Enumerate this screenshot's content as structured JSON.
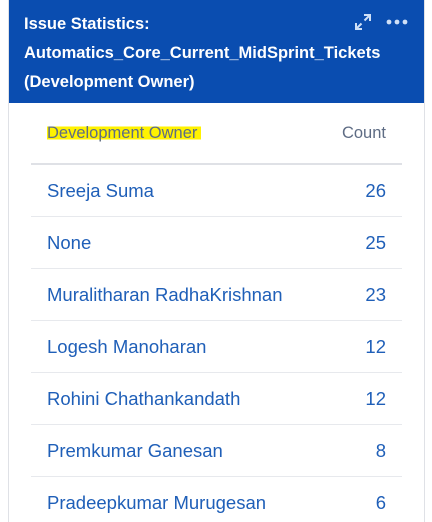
{
  "gadget": {
    "title_line1": "Issue Statistics:",
    "title_line2": "Automatics_Core_Current_MidSprint_Tickets",
    "title_line3": "(Development Owner)",
    "icons": [
      "expand-icon",
      "more-options-icon"
    ],
    "header_color": "#0a4db0",
    "link_color": "#1f5fb8",
    "highlight_color": "#fff200"
  },
  "table": {
    "columns": [
      "Development Owner",
      "Count"
    ],
    "rows": [
      {
        "owner": "Sreeja Suma",
        "count": "26"
      },
      {
        "owner": "None",
        "count": "25"
      },
      {
        "owner": "Muralitharan RadhaKrishnan",
        "count": "23"
      },
      {
        "owner": "Logesh Manoharan",
        "count": "12"
      },
      {
        "owner": "Rohini Chathankandath",
        "count": "12"
      },
      {
        "owner": "Premkumar Ganesan",
        "count": "8"
      },
      {
        "owner": "Pradeepkumar Murugesan",
        "count": "6"
      }
    ]
  }
}
